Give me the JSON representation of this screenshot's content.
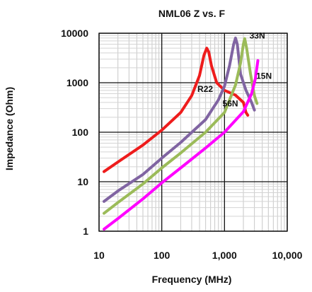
{
  "chart_data": {
    "type": "line",
    "title": "NML06 Z vs. F",
    "xlabel": "Frequency (MHz)",
    "ylabel": "Impedance (Ohm)",
    "x_scale": "log",
    "y_scale": "log",
    "xlim": [
      10,
      10000
    ],
    "ylim": [
      1,
      10000
    ],
    "x_ticks": [
      10,
      100,
      1000,
      10000
    ],
    "x_tick_labels": [
      "10",
      "100",
      "1,000",
      "10,000"
    ],
    "y_ticks": [
      1,
      10,
      100,
      1000,
      10000
    ],
    "y_tick_labels": [
      "1",
      "10",
      "100",
      "1000",
      "10000"
    ],
    "grid": true,
    "legend": "none (series labeled inline)",
    "series": [
      {
        "name": "R22",
        "color": "#ee1c1c",
        "points": [
          [
            12,
            16
          ],
          [
            20,
            25
          ],
          [
            50,
            55
          ],
          [
            100,
            110
          ],
          [
            200,
            250
          ],
          [
            300,
            550
          ],
          [
            400,
            1400
          ],
          [
            470,
            3600
          ],
          [
            520,
            5000
          ],
          [
            560,
            4200
          ],
          [
            620,
            2200
          ],
          [
            750,
            1000
          ],
          [
            1000,
            700
          ],
          [
            1500,
            560
          ],
          [
            2000,
            400
          ],
          [
            2200,
            250
          ],
          [
            2350,
            220
          ]
        ]
      },
      {
        "name": "56N",
        "color": "#8064a2",
        "points": [
          [
            12,
            4
          ],
          [
            20,
            6.5
          ],
          [
            50,
            14
          ],
          [
            100,
            30
          ],
          [
            200,
            62
          ],
          [
            500,
            180
          ],
          [
            800,
            450
          ],
          [
            1000,
            850
          ],
          [
            1200,
            2200
          ],
          [
            1400,
            6000
          ],
          [
            1500,
            8000
          ],
          [
            1600,
            6000
          ],
          [
            1800,
            1500
          ],
          [
            2200,
            700
          ],
          [
            2700,
            400
          ],
          [
            3000,
            280
          ]
        ]
      },
      {
        "name": "33N",
        "color": "#9bbb59",
        "points": [
          [
            12,
            2.3
          ],
          [
            20,
            3.8
          ],
          [
            50,
            9
          ],
          [
            100,
            19
          ],
          [
            200,
            38
          ],
          [
            500,
            100
          ],
          [
            1000,
            250
          ],
          [
            1500,
            900
          ],
          [
            1800,
            2500
          ],
          [
            2000,
            6000
          ],
          [
            2100,
            7800
          ],
          [
            2250,
            5000
          ],
          [
            2600,
            1500
          ],
          [
            3000,
            550
          ],
          [
            3300,
            380
          ]
        ]
      },
      {
        "name": "15N",
        "color": "#ff00ff",
        "points": [
          [
            12,
            1.1
          ],
          [
            20,
            1.8
          ],
          [
            50,
            4.5
          ],
          [
            100,
            9.5
          ],
          [
            200,
            19
          ],
          [
            500,
            48
          ],
          [
            1000,
            100
          ],
          [
            2000,
            260
          ],
          [
            2700,
            600
          ],
          [
            3100,
            1200
          ],
          [
            3400,
            2800
          ]
        ]
      }
    ],
    "inline_labels": [
      {
        "text": "R22",
        "x": 370,
        "y": 650
      },
      {
        "text": "56N",
        "x": 930,
        "y": 330
      },
      {
        "text": "33N",
        "x": 2500,
        "y": 7800
      },
      {
        "text": "15N",
        "x": 3200,
        "y": 1200
      }
    ]
  }
}
